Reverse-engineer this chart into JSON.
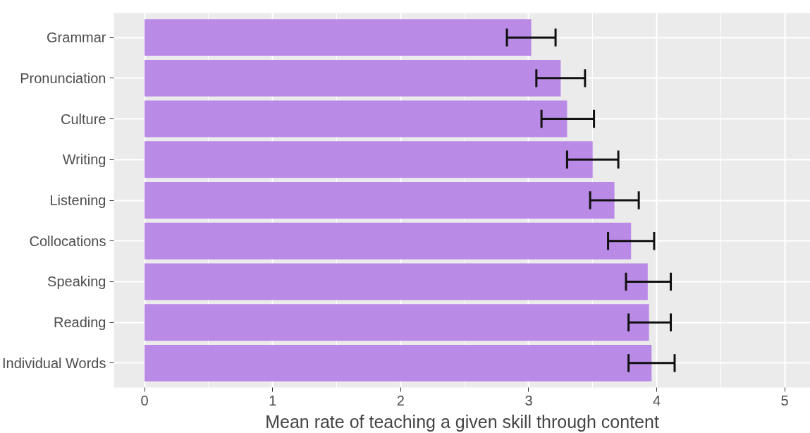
{
  "chart_data": {
    "type": "bar",
    "orientation": "horizontal",
    "xlabel": "Mean rate of teaching a given skill through content",
    "categories": [
      "Grammar",
      "Pronunciation",
      "Culture",
      "Writing",
      "Listening",
      "Collocations",
      "Speaking",
      "Reading",
      "Individual Words"
    ],
    "values": [
      3.02,
      3.25,
      3.3,
      3.5,
      3.67,
      3.8,
      3.93,
      3.94,
      3.96
    ],
    "errors": [
      [
        2.83,
        3.21
      ],
      [
        3.06,
        3.44
      ],
      [
        3.1,
        3.51
      ],
      [
        3.3,
        3.7
      ],
      [
        3.48,
        3.86
      ],
      [
        3.62,
        3.98
      ],
      [
        3.76,
        4.11
      ],
      [
        3.78,
        4.11
      ],
      [
        3.78,
        4.14
      ]
    ],
    "color": "#b98ae6",
    "xlim": [
      -0.24,
      5.2
    ],
    "xticks": [
      0,
      1,
      2,
      3,
      4,
      5
    ],
    "grid": true
  }
}
